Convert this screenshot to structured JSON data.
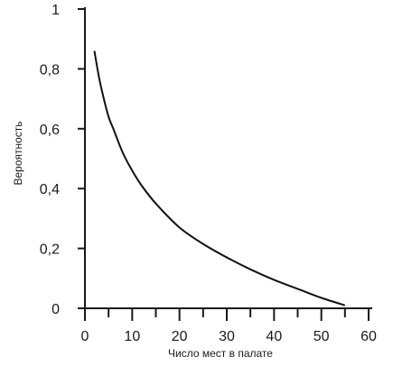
{
  "chart_data": {
    "type": "line",
    "xlabel": "Число мест в палате",
    "ylabel": "Вероятность",
    "xlim": [
      0,
      60
    ],
    "ylim": [
      0,
      1
    ],
    "x_ticks": [
      0,
      10,
      20,
      30,
      40,
      50,
      60
    ],
    "x_tick_labels": [
      "0",
      "10",
      "20",
      "30",
      "40",
      "50",
      "60"
    ],
    "y_ticks": [
      0,
      0.2,
      0.4,
      0.6,
      0.8,
      1
    ],
    "y_tick_labels": [
      "0",
      "0,2",
      "0,4",
      "0,6",
      "0,8",
      "1"
    ],
    "grid": false,
    "legend": "none",
    "series": [
      {
        "color": "#111111",
        "x": [
          2,
          3,
          4,
          5,
          6,
          8,
          10,
          12,
          15,
          20,
          25,
          30,
          35,
          40,
          45,
          50,
          55
        ],
        "y": [
          0.86,
          0.77,
          0.7,
          0.64,
          0.6,
          0.52,
          0.46,
          0.41,
          0.35,
          0.27,
          0.215,
          0.17,
          0.13,
          0.095,
          0.065,
          0.035,
          0.01
        ]
      }
    ]
  }
}
